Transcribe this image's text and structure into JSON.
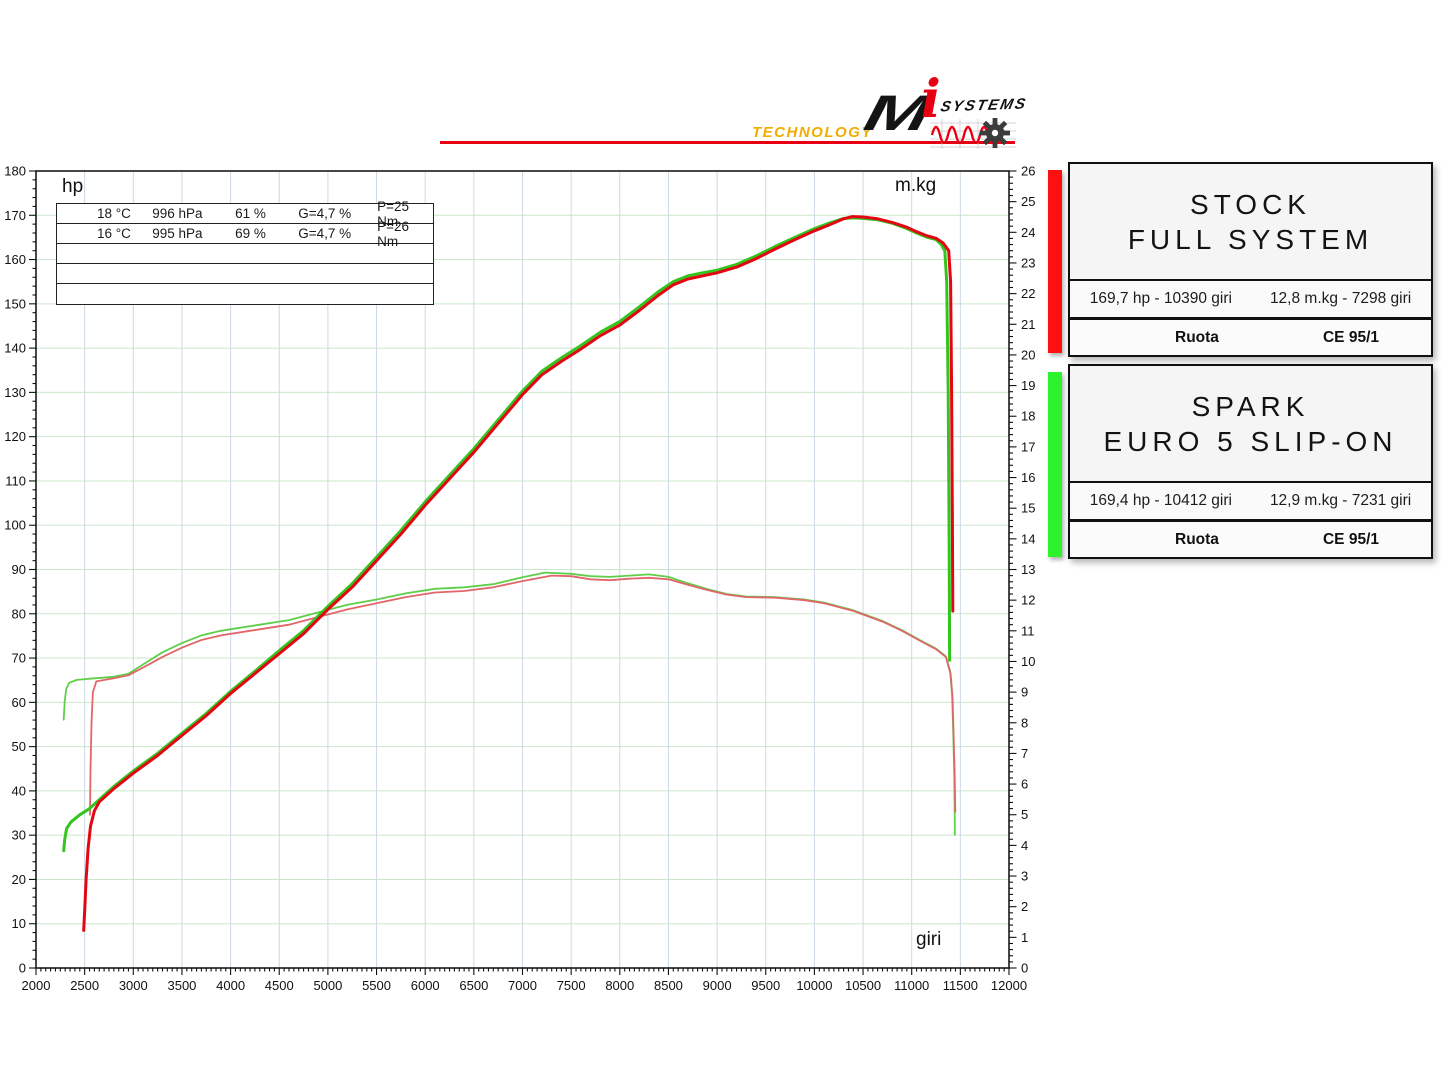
{
  "logo": {
    "technology": "TECHNOLOGY",
    "brand_m": "M",
    "brand_i": "i",
    "brand_systems": "SYSTEMS",
    "underline_color": "#e60012",
    "technology_color": "#f2ac00"
  },
  "chart_data": {
    "type": "line",
    "xlabel": "giri",
    "y_left_label": "hp",
    "y_right_label": "m.kg",
    "x_axis": {
      "min": 2000,
      "max": 12000,
      "major_step": 500,
      "minor_step": 50
    },
    "y_left_axis": {
      "min": 0,
      "max": 180,
      "major_step": 10,
      "minor_step": 2
    },
    "y_right_axis": {
      "min": 0,
      "max": 26,
      "major_step": 1,
      "minor_step": 0.2
    },
    "grid": {
      "horizontal_color": "#cbe7cb",
      "vertical_color": "#ccd9e3"
    },
    "legend_position": "right",
    "conditions_rows": [
      [
        "18 °C",
        "996 hPa",
        "61 %",
        "G=4,7 %",
        "P=25 Nm"
      ],
      [
        "16 °C",
        "995 hPa",
        "69 %",
        "G=4,7 %",
        "P=26 Nm"
      ]
    ],
    "series": [
      {
        "name": "spark-torque",
        "axis": "right",
        "color": "#5fcf4a",
        "width": 1.8,
        "points": [
          [
            2285,
            8.1
          ],
          [
            2295,
            8.7
          ],
          [
            2310,
            9.1
          ],
          [
            2340,
            9.3
          ],
          [
            2420,
            9.4
          ],
          [
            2600,
            9.45
          ],
          [
            2800,
            9.5
          ],
          [
            2950,
            9.6
          ],
          [
            3100,
            9.9
          ],
          [
            3300,
            10.3
          ],
          [
            3500,
            10.6
          ],
          [
            3700,
            10.85
          ],
          [
            3900,
            11.0
          ],
          [
            4100,
            11.1
          ],
          [
            4300,
            11.2
          ],
          [
            4600,
            11.35
          ],
          [
            4900,
            11.6
          ],
          [
            5200,
            11.85
          ],
          [
            5500,
            12.02
          ],
          [
            5800,
            12.22
          ],
          [
            6100,
            12.37
          ],
          [
            6400,
            12.42
          ],
          [
            6700,
            12.52
          ],
          [
            7000,
            12.75
          ],
          [
            7231,
            12.9
          ],
          [
            7500,
            12.86
          ],
          [
            7700,
            12.78
          ],
          [
            7900,
            12.76
          ],
          [
            8100,
            12.8
          ],
          [
            8300,
            12.84
          ],
          [
            8500,
            12.76
          ],
          [
            8700,
            12.55
          ],
          [
            8900,
            12.36
          ],
          [
            9100,
            12.2
          ],
          [
            9300,
            12.12
          ],
          [
            9600,
            12.1
          ],
          [
            9900,
            12.02
          ],
          [
            10100,
            11.92
          ],
          [
            10400,
            11.67
          ],
          [
            10700,
            11.32
          ],
          [
            10900,
            11.02
          ],
          [
            11100,
            10.67
          ],
          [
            11250,
            10.42
          ],
          [
            11350,
            10.17
          ],
          [
            11395,
            9.7
          ],
          [
            11415,
            8.9
          ],
          [
            11428,
            7.6
          ],
          [
            11438,
            6.2
          ],
          [
            11444,
            4.35
          ]
        ]
      },
      {
        "name": "stock-torque",
        "axis": "right",
        "color": "#e0666a",
        "width": 1.8,
        "points": [
          [
            2555,
            5.0
          ],
          [
            2560,
            6.5
          ],
          [
            2570,
            8.0
          ],
          [
            2585,
            9.0
          ],
          [
            2620,
            9.35
          ],
          [
            2800,
            9.45
          ],
          [
            2950,
            9.55
          ],
          [
            3100,
            9.8
          ],
          [
            3300,
            10.15
          ],
          [
            3500,
            10.45
          ],
          [
            3700,
            10.7
          ],
          [
            3900,
            10.85
          ],
          [
            4100,
            10.95
          ],
          [
            4300,
            11.05
          ],
          [
            4600,
            11.2
          ],
          [
            4900,
            11.45
          ],
          [
            5200,
            11.7
          ],
          [
            5500,
            11.9
          ],
          [
            5800,
            12.1
          ],
          [
            6100,
            12.25
          ],
          [
            6400,
            12.3
          ],
          [
            6700,
            12.42
          ],
          [
            7000,
            12.62
          ],
          [
            7298,
            12.8
          ],
          [
            7500,
            12.78
          ],
          [
            7700,
            12.68
          ],
          [
            7900,
            12.65
          ],
          [
            8100,
            12.7
          ],
          [
            8300,
            12.73
          ],
          [
            8500,
            12.68
          ],
          [
            8700,
            12.5
          ],
          [
            8900,
            12.33
          ],
          [
            9100,
            12.18
          ],
          [
            9300,
            12.1
          ],
          [
            9600,
            12.08
          ],
          [
            9900,
            12.0
          ],
          [
            10100,
            11.9
          ],
          [
            10400,
            11.65
          ],
          [
            10700,
            11.3
          ],
          [
            10900,
            11.0
          ],
          [
            11100,
            10.65
          ],
          [
            11250,
            10.4
          ],
          [
            11350,
            10.15
          ],
          [
            11400,
            9.6
          ],
          [
            11420,
            8.8
          ],
          [
            11432,
            7.5
          ],
          [
            11442,
            6.3
          ],
          [
            11448,
            5.1
          ]
        ]
      },
      {
        "name": "spark-hp",
        "axis": "left",
        "color": "#33c41e",
        "width": 3,
        "points": [
          [
            2285,
            26.5
          ],
          [
            2295,
            29
          ],
          [
            2315,
            31.5
          ],
          [
            2360,
            33
          ],
          [
            2450,
            34.6
          ],
          [
            2550,
            36
          ],
          [
            2650,
            38
          ],
          [
            2800,
            41
          ],
          [
            3000,
            44.5
          ],
          [
            3250,
            48.5
          ],
          [
            3500,
            53
          ],
          [
            3750,
            57.5
          ],
          [
            4000,
            62.5
          ],
          [
            4250,
            67
          ],
          [
            4500,
            71.7
          ],
          [
            4750,
            76.2
          ],
          [
            5000,
            81.7
          ],
          [
            5250,
            86.8
          ],
          [
            5500,
            92.8
          ],
          [
            5750,
            98.8
          ],
          [
            6000,
            105.3
          ],
          [
            6250,
            111.3
          ],
          [
            6500,
            117.3
          ],
          [
            6750,
            123.8
          ],
          [
            7000,
            130.3
          ],
          [
            7200,
            134.8
          ],
          [
            7400,
            137.8
          ],
          [
            7600,
            140.6
          ],
          [
            7800,
            143.6
          ],
          [
            8000,
            146
          ],
          [
            8200,
            149.3
          ],
          [
            8400,
            152.8
          ],
          [
            8550,
            155
          ],
          [
            8700,
            156.3
          ],
          [
            8850,
            157
          ],
          [
            9000,
            157.6
          ],
          [
            9200,
            158.9
          ],
          [
            9400,
            160.8
          ],
          [
            9600,
            163
          ],
          [
            9800,
            165
          ],
          [
            10000,
            167
          ],
          [
            10150,
            168.2
          ],
          [
            10300,
            169.3
          ],
          [
            10412,
            169.4
          ],
          [
            10500,
            169.3
          ],
          [
            10650,
            169
          ],
          [
            10800,
            168.2
          ],
          [
            10950,
            167
          ],
          [
            11050,
            166
          ],
          [
            11150,
            165.1
          ],
          [
            11250,
            164.5
          ],
          [
            11300,
            163.5
          ],
          [
            11340,
            162
          ],
          [
            11360,
            155
          ],
          [
            11375,
            130
          ],
          [
            11385,
            95
          ],
          [
            11390,
            69.5
          ]
        ]
      },
      {
        "name": "stock-hp",
        "axis": "left",
        "color": "#e30613",
        "width": 3,
        "points": [
          [
            2490,
            8.5
          ],
          [
            2500,
            13
          ],
          [
            2515,
            20
          ],
          [
            2535,
            27
          ],
          [
            2560,
            32
          ],
          [
            2600,
            35.5
          ],
          [
            2650,
            37.5
          ],
          [
            2800,
            40.5
          ],
          [
            3000,
            44
          ],
          [
            3250,
            48
          ],
          [
            3500,
            52.5
          ],
          [
            3750,
            57
          ],
          [
            4000,
            62
          ],
          [
            4250,
            66.5
          ],
          [
            4500,
            71
          ],
          [
            4750,
            75.5
          ],
          [
            5000,
            81
          ],
          [
            5250,
            86
          ],
          [
            5500,
            92
          ],
          [
            5750,
            98
          ],
          [
            6000,
            104.5
          ],
          [
            6250,
            110.5
          ],
          [
            6500,
            116.5
          ],
          [
            6750,
            123
          ],
          [
            7000,
            129.5
          ],
          [
            7200,
            134
          ],
          [
            7400,
            137
          ],
          [
            7600,
            139.8
          ],
          [
            7800,
            142.8
          ],
          [
            8000,
            145.2
          ],
          [
            8200,
            148.5
          ],
          [
            8400,
            152
          ],
          [
            8550,
            154.3
          ],
          [
            8700,
            155.6
          ],
          [
            8850,
            156.3
          ],
          [
            9000,
            157
          ],
          [
            9200,
            158.3
          ],
          [
            9400,
            160.2
          ],
          [
            9600,
            162.4
          ],
          [
            9800,
            164.5
          ],
          [
            10000,
            166.5
          ],
          [
            10150,
            167.8
          ],
          [
            10300,
            169.2
          ],
          [
            10390,
            169.7
          ],
          [
            10500,
            169.6
          ],
          [
            10650,
            169.2
          ],
          [
            10800,
            168.4
          ],
          [
            10950,
            167.3
          ],
          [
            11050,
            166.3
          ],
          [
            11150,
            165.4
          ],
          [
            11250,
            164.8
          ],
          [
            11320,
            163.8
          ],
          [
            11380,
            162
          ],
          [
            11400,
            155
          ],
          [
            11410,
            130
          ],
          [
            11418,
            100
          ],
          [
            11422,
            80.6
          ]
        ]
      }
    ]
  },
  "legend": [
    {
      "bar_color": "#ff1010",
      "title_line1": "STOCK",
      "title_line2": "FULL SYSTEM",
      "stats_left": "169,7 hp - 10390 giri",
      "stats_right": "12,8 m.kg - 7298 giri",
      "footer_left": "Ruota",
      "footer_right": "CE 95/1"
    },
    {
      "bar_color": "#2df32d",
      "title_line1": "SPARK",
      "title_line2": "EURO 5 SLIP-ON",
      "stats_left": "169,4 hp - 10412 giri",
      "stats_right": "12,9 m.kg - 7231 giri",
      "footer_left": "Ruota",
      "footer_right": "CE 95/1"
    }
  ]
}
